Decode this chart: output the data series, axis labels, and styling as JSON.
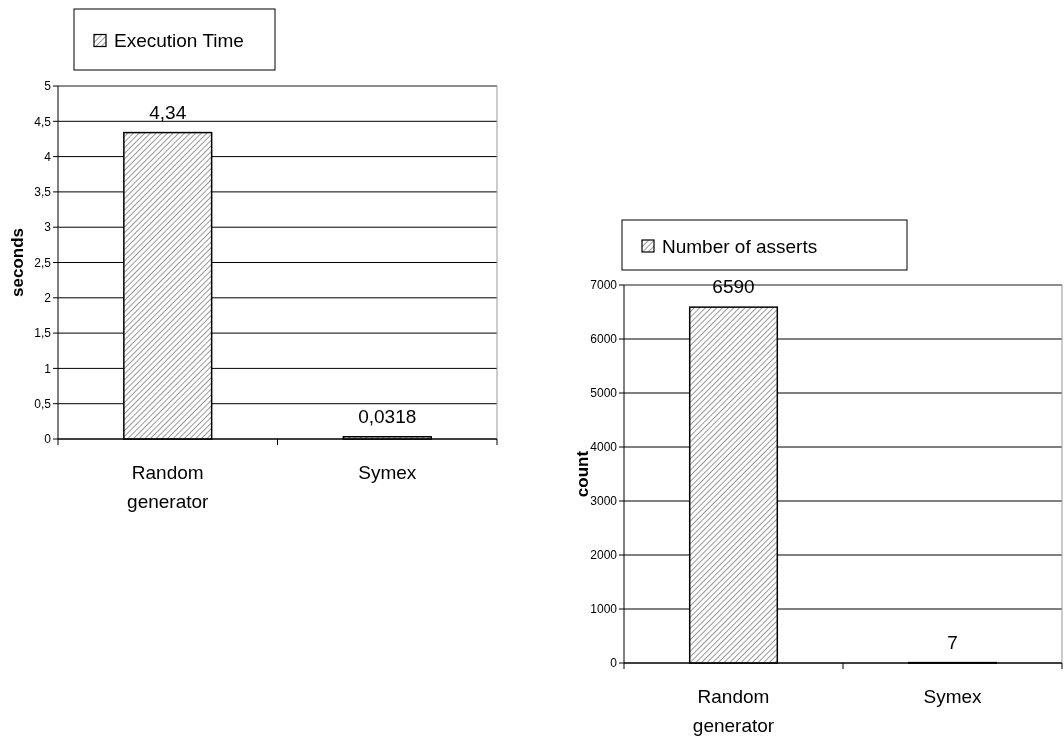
{
  "chart_data": [
    {
      "type": "bar",
      "categories": [
        "Random generator",
        "Symex"
      ],
      "ylabel": "seconds",
      "series": [
        {
          "name": "Execution Time",
          "color": "#000000",
          "values": [
            4.34,
            0.0318
          ],
          "value_labels": [
            "4,34",
            "0,0318"
          ]
        }
      ],
      "ylim": [
        0,
        5
      ],
      "yticks": [
        0,
        {
          "value": 0.5,
          "label": "0,5"
        },
        1,
        {
          "value": 1.5,
          "label": "1,5"
        },
        2,
        {
          "value": 2.5,
          "label": "2,5"
        },
        3,
        {
          "value": 3.5,
          "label": "3,5"
        },
        4,
        {
          "value": 4.5,
          "label": "4,5"
        },
        5
      ],
      "grid": "y",
      "legend": "top"
    },
    {
      "type": "bar",
      "categories": [
        "Random generator",
        "Symex"
      ],
      "ylabel": "count",
      "series": [
        {
          "name": "Number of asserts",
          "color": "#000000",
          "values": [
            6590,
            7
          ]
        }
      ],
      "data_labels": true,
      "ylim": [
        0,
        7000
      ],
      "yticks": [
        0,
        1000,
        2000,
        3000,
        4000,
        5000,
        6000,
        7000
      ],
      "grid": "y",
      "legend": "top"
    }
  ]
}
